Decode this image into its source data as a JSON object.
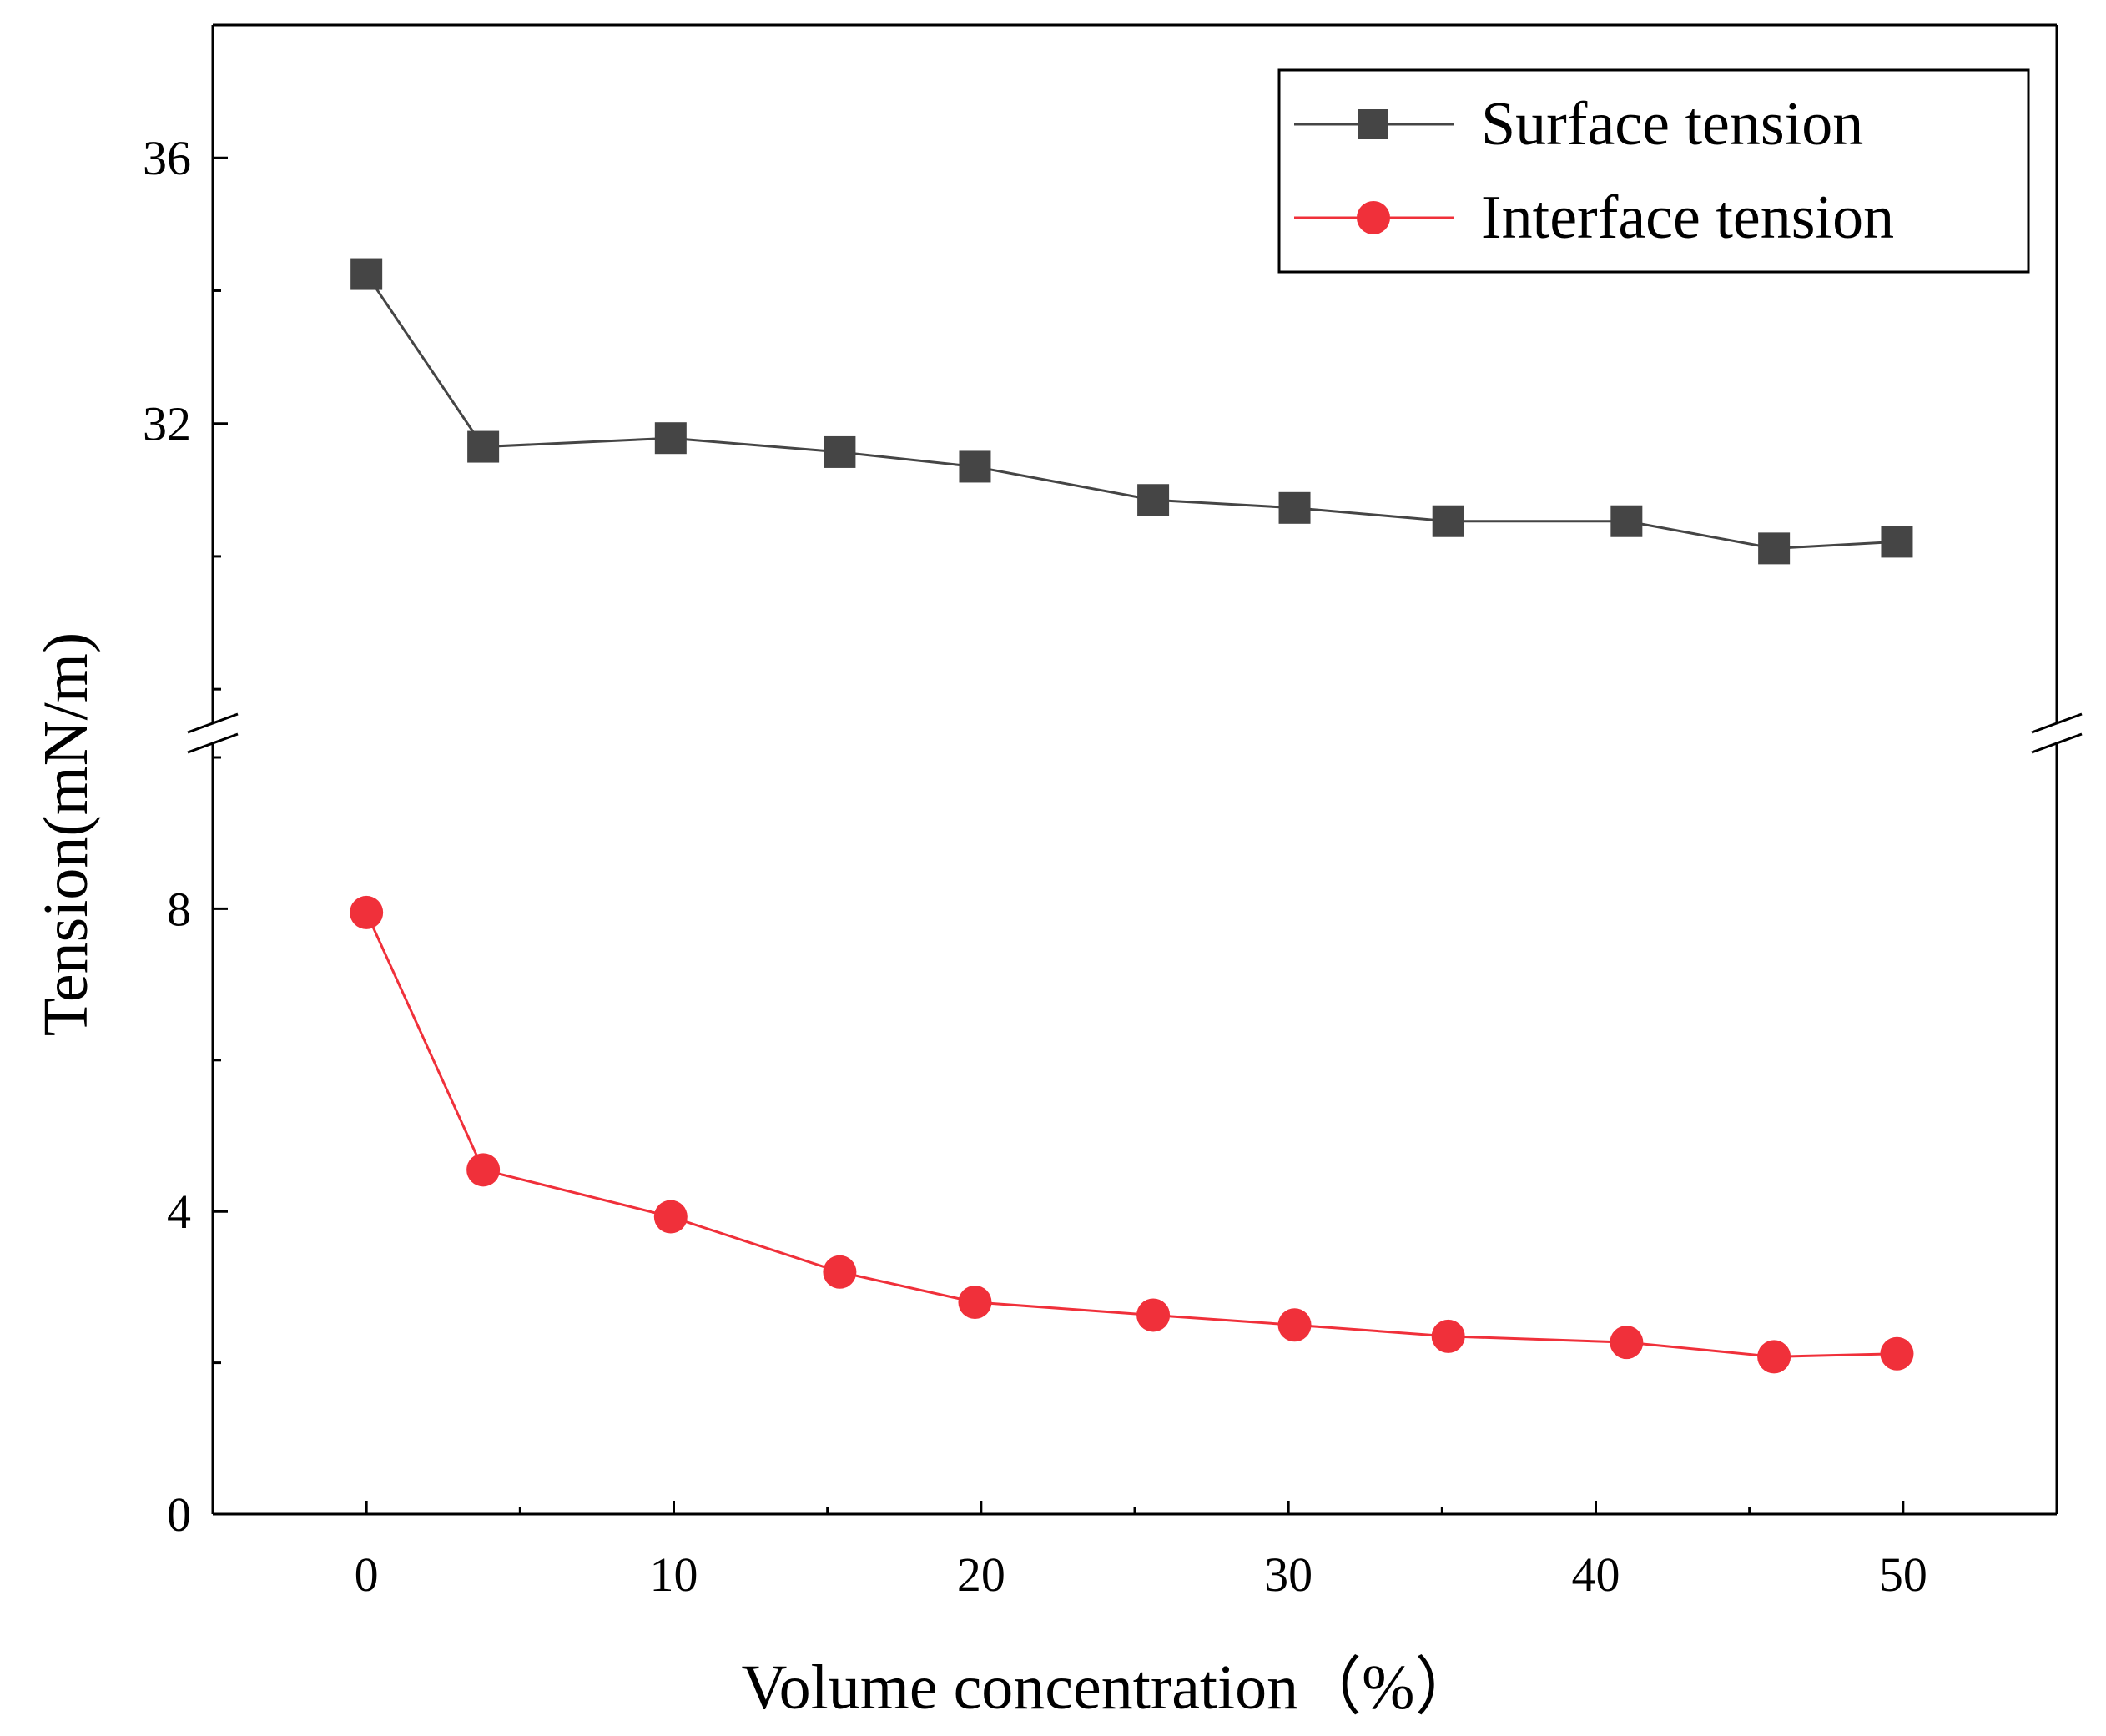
{
  "chart_data": {
    "type": "line",
    "title": "",
    "xlabel": "Volume concentration（%）",
    "ylabel": "Tension(mN/m)",
    "xlim": [
      -5,
      55
    ],
    "x_ticks": [
      "0",
      "10",
      "20",
      "30",
      "40",
      "50"
    ],
    "y_axis_break": true,
    "upper_segment": {
      "ylim": [
        27.6,
        38
      ],
      "ticks": [
        "32",
        "36"
      ]
    },
    "lower_segment": {
      "ylim": [
        0,
        10
      ],
      "ticks": [
        "0",
        "4",
        "8"
      ]
    },
    "legend_position": "top-right",
    "series": [
      {
        "name": "Surface tension",
        "color": "#454545",
        "marker": "square",
        "segment": "upper",
        "x": [
          0,
          3.8,
          9.9,
          15.4,
          19.8,
          25.6,
          30.2,
          35.2,
          41.0,
          45.8,
          49.8
        ],
        "y": [
          34.25,
          31.65,
          31.78,
          31.57,
          31.35,
          30.85,
          30.73,
          30.53,
          30.53,
          30.12,
          30.22
        ]
      },
      {
        "name": "Interface tension",
        "color": "#f0303a",
        "marker": "circle",
        "segment": "lower",
        "x": [
          0,
          3.8,
          9.9,
          15.4,
          19.8,
          25.6,
          30.2,
          35.2,
          41.0,
          45.8,
          49.8
        ],
        "y": [
          7.95,
          4.55,
          3.93,
          3.2,
          2.8,
          2.63,
          2.5,
          2.35,
          2.27,
          2.08,
          2.12
        ]
      }
    ]
  }
}
